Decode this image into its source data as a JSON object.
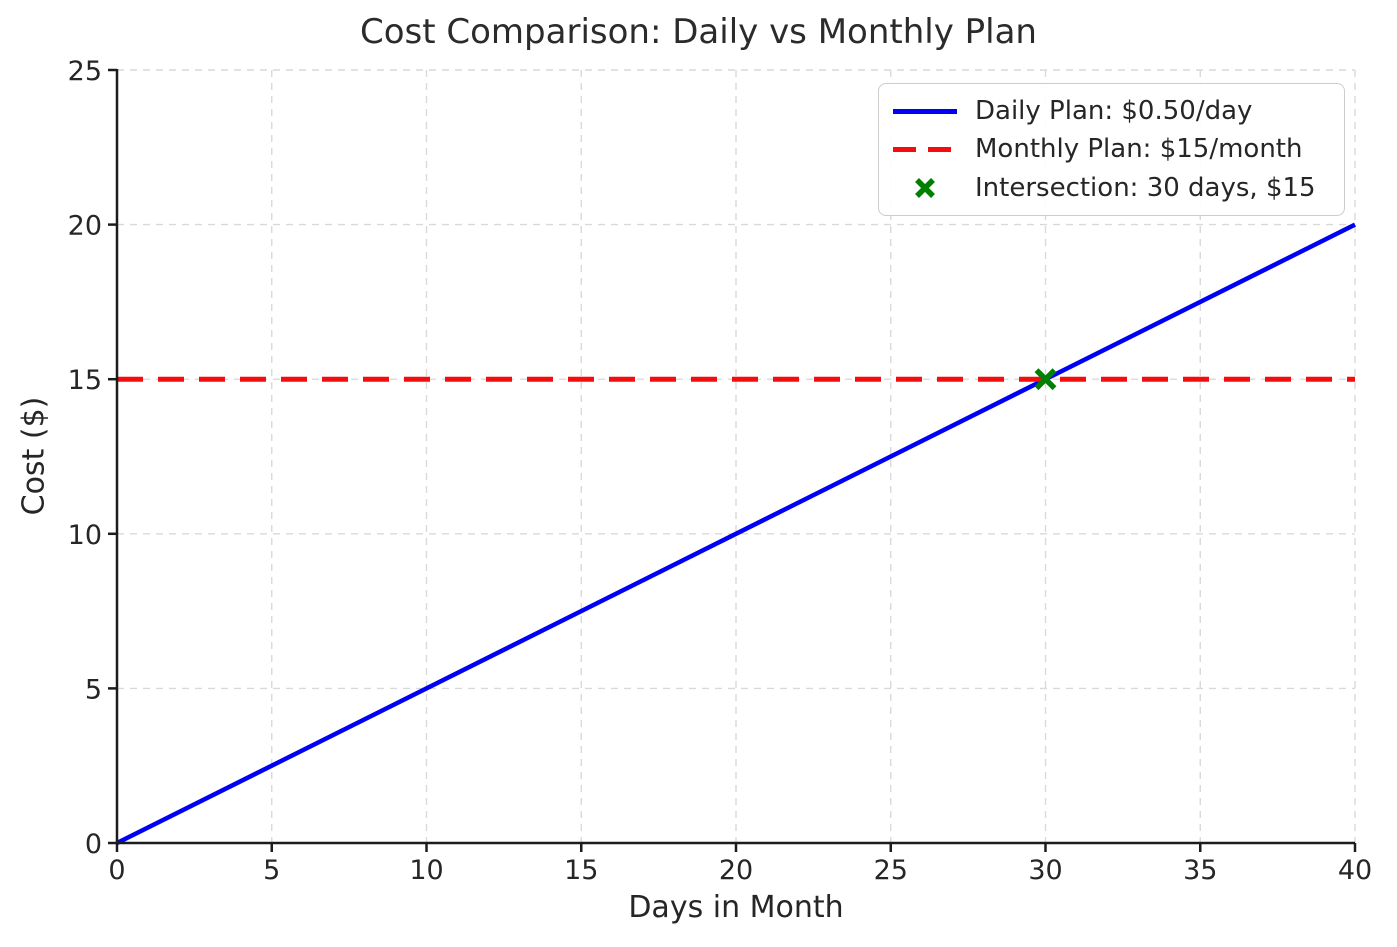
{
  "chart_data": {
    "type": "line",
    "title": "Cost Comparison: Daily vs Monthly Plan",
    "xlabel": "Days in Month",
    "ylabel": "Cost ($)",
    "xlim": [
      0,
      40
    ],
    "ylim": [
      0,
      25
    ],
    "x_ticks": [
      0,
      5,
      10,
      15,
      20,
      25,
      30,
      35,
      40
    ],
    "y_ticks": [
      0,
      5,
      10,
      15,
      20,
      25
    ],
    "grid": true,
    "grid_style": "dashed",
    "legend_position": "upper right",
    "series": [
      {
        "name": "Daily Plan: $0.50/day",
        "type": "line",
        "style": "solid",
        "color": "#0000f5",
        "x": [
          0,
          40
        ],
        "y": [
          0,
          20
        ]
      },
      {
        "name": "Monthly Plan: $15/month",
        "type": "line",
        "style": "dashed",
        "color": "#f50d0d",
        "x": [
          0,
          40
        ],
        "y": [
          15,
          15
        ]
      },
      {
        "name": "Intersection: 30 days, $15",
        "type": "scatter",
        "marker": "x",
        "color": "#008000",
        "x": [
          30
        ],
        "y": [
          15
        ]
      }
    ],
    "style": {
      "text_color": "#262626",
      "grid_color": "#d9d9d9",
      "spine_color": "#1c1c1c",
      "background": "#ffffff",
      "legend_border": "#cccccc"
    }
  }
}
